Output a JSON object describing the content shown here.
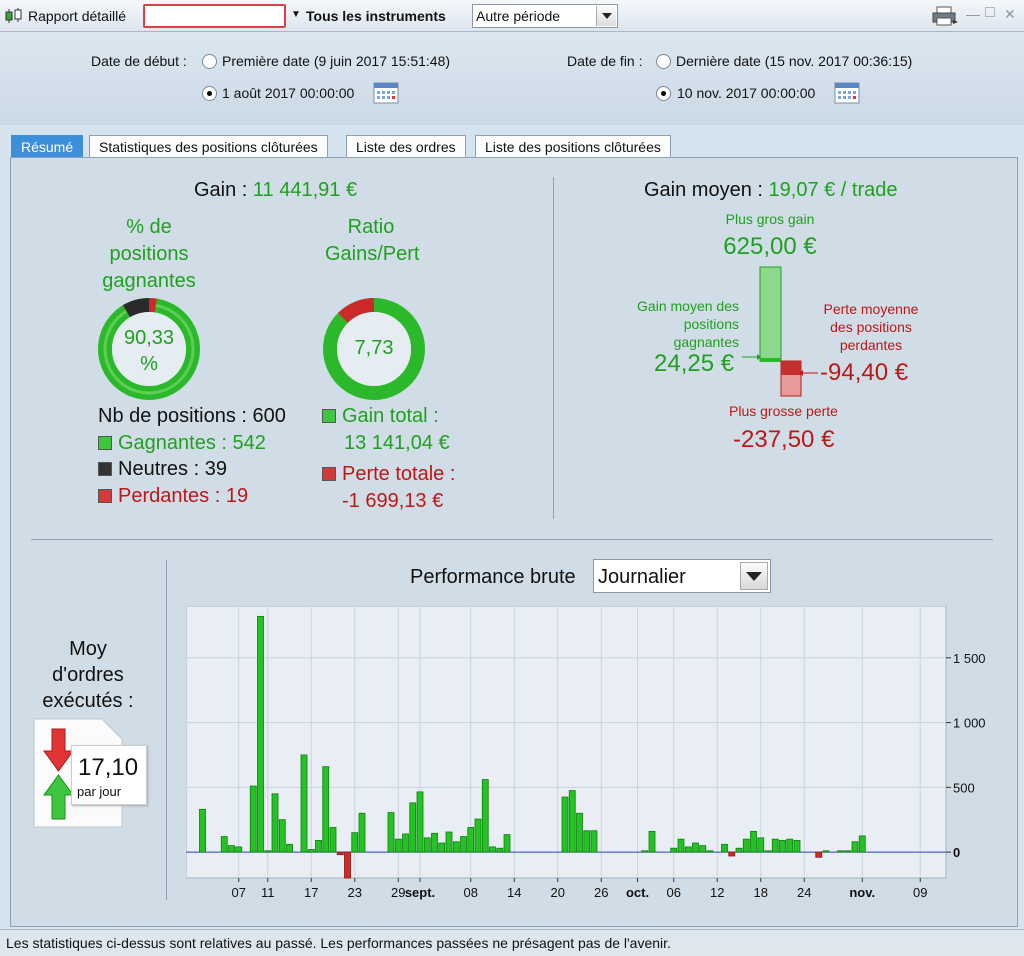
{
  "toolbar": {
    "title": "Rapport détaillé",
    "instruments": "Tous les instruments",
    "period": "Autre période",
    "win_min": "—",
    "win_max": "□",
    "win_close": "✕"
  },
  "dates": {
    "start_label": "Date de début :",
    "start_first": "Première date (9 juin 2017 15:51:48)",
    "start_custom": "1 août 2017 00:00:00",
    "end_label": "Date de fin :",
    "end_last": "Dernière date (15 nov. 2017 00:36:15)",
    "end_custom": "10 nov. 2017 00:00:00"
  },
  "tabs": [
    "Résumé",
    "Statistiques des positions clôturées",
    "Liste des ordres",
    "Liste des positions clôturées"
  ],
  "summary": {
    "gain_label": "Gain :",
    "gain_value": "11 441,91 €",
    "pct_title_1": "% de",
    "pct_title_2": "positions",
    "pct_title_3": "gagnantes",
    "pct_value_1": "90,33",
    "pct_value_2": "%",
    "pct_fraction": 0.9033,
    "ratio_title_1": "Ratio",
    "ratio_title_2": "Gains/Pert",
    "ratio_value": "7,73",
    "nb_positions": "Nb de positions : 600",
    "winners": "Gagnantes : 542",
    "neutral": "Neutres : 39",
    "losers": "Perdantes : 19",
    "gain_total_label": "Gain total :",
    "gain_total_value": "13 141,04 €",
    "perte_totale_label": "Perte totale :",
    "perte_totale_value": "-1 699,13 €"
  },
  "avg": {
    "label": "Gain moyen :",
    "value": "19,07 € / trade",
    "max_gain_label": "Plus gros gain",
    "max_gain_value": "625,00 €",
    "avg_win_label_1": "Gain moyen des",
    "avg_win_label_2": "positions",
    "avg_win_label_3": "gagnantes",
    "avg_win_value": "24,25 €",
    "avg_loss_label_1": "Perte moyenne",
    "avg_loss_label_2": "des positions",
    "avg_loss_label_3": "perdantes",
    "avg_loss_value": "-94,40 €",
    "max_loss_label": "Plus grosse perte",
    "max_loss_value": "-237,50 €"
  },
  "orders": {
    "label_1": "Moy",
    "label_2": "d'ordres",
    "label_3": "exécutés :",
    "value": "17,10",
    "unit": "par jour"
  },
  "perf": {
    "title": "Performance brute",
    "select": "Journalier"
  },
  "chart_data": {
    "type": "bar",
    "ylim": [
      -200,
      1900
    ],
    "yticks": [
      {
        "value": 1500,
        "label": "1 500"
      },
      {
        "value": 1000,
        "label": "1 000"
      },
      {
        "value": 500,
        "label": "500"
      },
      {
        "value": 0,
        "label": "0"
      }
    ],
    "xticks": [
      {
        "day": 7,
        "label": "07",
        "bold": false
      },
      {
        "day": 11,
        "label": "11",
        "bold": false
      },
      {
        "day": 17,
        "label": "17",
        "bold": false
      },
      {
        "day": 23,
        "label": "23",
        "bold": false
      },
      {
        "day": 29,
        "label": "29",
        "bold": false
      },
      {
        "day": 32,
        "label": "sept.",
        "bold": true
      },
      {
        "day": 39,
        "label": "08",
        "bold": false
      },
      {
        "day": 45,
        "label": "14",
        "bold": false
      },
      {
        "day": 51,
        "label": "20",
        "bold": false
      },
      {
        "day": 57,
        "label": "26",
        "bold": false
      },
      {
        "day": 62,
        "label": "oct.",
        "bold": true
      },
      {
        "day": 67,
        "label": "06",
        "bold": false
      },
      {
        "day": 73,
        "label": "12",
        "bold": false
      },
      {
        "day": 79,
        "label": "18",
        "bold": false
      },
      {
        "day": 85,
        "label": "24",
        "bold": false
      },
      {
        "day": 93,
        "label": "nov.",
        "bold": true
      },
      {
        "day": 101,
        "label": "09",
        "bold": false
      }
    ],
    "x": [
      2,
      4,
      5,
      6,
      7,
      8,
      9,
      10,
      11,
      12,
      13,
      14,
      16,
      17,
      18,
      19,
      20,
      21,
      22,
      23,
      24,
      26,
      27,
      28,
      29,
      30,
      31,
      32,
      33,
      34,
      35,
      36,
      37,
      38,
      39,
      40,
      41,
      42,
      43,
      44,
      45,
      46,
      47,
      48,
      50,
      51,
      52,
      53,
      54,
      55,
      56,
      57,
      58,
      59,
      60,
      61,
      62,
      63,
      64,
      65,
      66,
      67,
      68,
      69,
      70,
      71,
      72,
      73,
      74,
      75,
      76,
      77,
      78,
      79,
      80,
      81,
      82,
      83,
      84,
      85,
      86,
      87,
      88,
      89,
      90,
      91,
      92,
      93,
      94,
      95,
      96,
      97,
      98,
      99,
      100,
      101
    ],
    "values": [
      330,
      0,
      120,
      50,
      40,
      0,
      510,
      1820,
      10,
      450,
      250,
      60,
      750,
      20,
      90,
      660,
      190,
      -20,
      -200,
      150,
      300,
      0,
      0,
      305,
      100,
      140,
      380,
      465,
      110,
      145,
      70,
      155,
      80,
      120,
      190,
      255,
      560,
      40,
      30,
      135,
      0,
      0,
      0,
      0,
      0,
      0,
      425,
      475,
      300,
      165,
      165,
      0,
      0,
      0,
      0,
      0,
      0,
      10,
      160,
      0,
      0,
      30,
      100,
      40,
      70,
      50,
      10,
      0,
      60,
      -30,
      30,
      100,
      160,
      110,
      10,
      100,
      90,
      100,
      90,
      0,
      0,
      -40,
      10,
      0,
      10,
      10,
      80,
      125,
      0,
      0,
      0,
      0,
      0,
      0,
      0,
      0
    ]
  },
  "status": "Les statistiques ci-dessus sont relatives au passé. Les performances passées ne présagent pas de l'avenir."
}
